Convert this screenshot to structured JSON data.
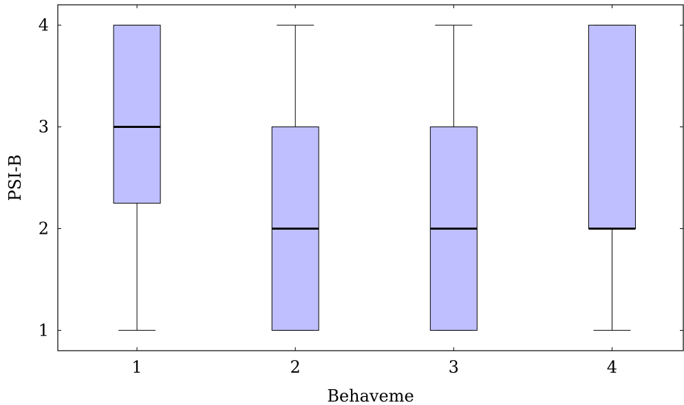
{
  "chart_data": {
    "type": "box",
    "xlabel": "Behaveme",
    "ylabel": "PSI-B",
    "x_ticks": [
      "1",
      "2",
      "3",
      "4"
    ],
    "y_ticks": [
      "1",
      "2",
      "3",
      "4"
    ],
    "ylim": [
      0.8,
      4.2
    ],
    "xlim": [
      0.5,
      4.45
    ],
    "grid": false,
    "box_color": "#bfbfff",
    "boxes": [
      {
        "x": 1,
        "min": 1,
        "q1": 2.25,
        "median": 3,
        "q3": 4,
        "max": 4
      },
      {
        "x": 2,
        "min": 1,
        "q1": 1,
        "median": 2,
        "q3": 3,
        "max": 4
      },
      {
        "x": 3,
        "min": 1,
        "q1": 1,
        "median": 2,
        "q3": 3,
        "max": 4
      },
      {
        "x": 4,
        "min": 1,
        "q1": 2,
        "median": 2,
        "q3": 4,
        "max": 4
      }
    ]
  }
}
